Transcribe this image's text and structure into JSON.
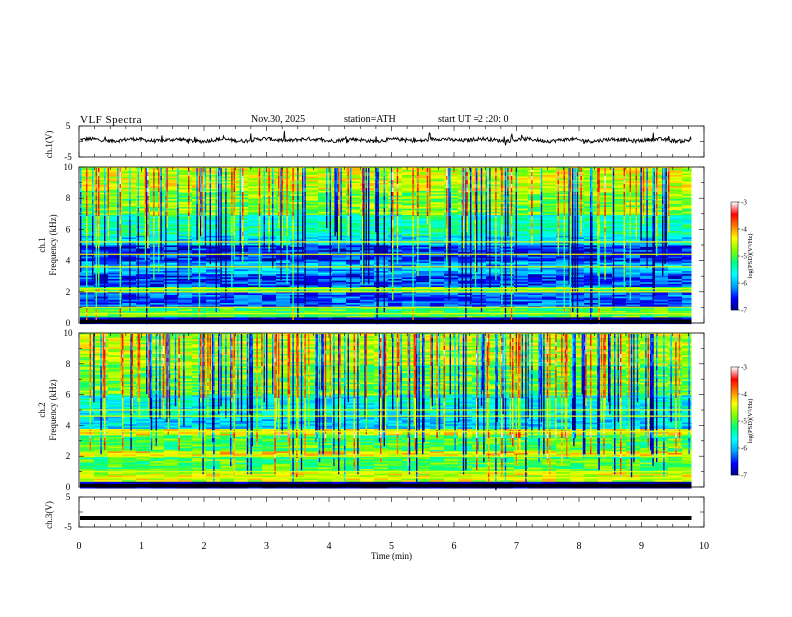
{
  "header": {
    "title": "VLF Spectra",
    "date": "Nov.30, 2025",
    "station": "station=ATH",
    "start_label": "start UT =",
    "start_time": "2 :20: 0"
  },
  "colors": {
    "waveform": "#000000",
    "colormap": [
      "#000080",
      "#0000ff",
      "#00a0ff",
      "#00ffff",
      "#00ff80",
      "#80ff00",
      "#ffff00",
      "#ff8000",
      "#ff0000",
      "#ffffff"
    ]
  },
  "chart_data": [
    {
      "type": "line",
      "panel": "ch1-waveform",
      "ylabel": "ch.1(V)",
      "ylim": [
        -5,
        5
      ],
      "yticks": [
        "5",
        "-5"
      ],
      "xlim": [
        0,
        10
      ],
      "baseline_v": 0.5,
      "noise_amplitude_v": 1.5,
      "x": [
        0,
        1,
        2,
        3,
        4,
        5,
        6,
        7,
        8,
        9,
        9.8
      ],
      "y": [
        0.5,
        0.5,
        0.3,
        0.6,
        0.5,
        0.4,
        0.6,
        0.5,
        0.4,
        0.5,
        0.4
      ]
    },
    {
      "type": "heatmap",
      "panel": "ch1-spectrogram",
      "ylabel": "ch.1\nFrequency (kHz)",
      "xlim": [
        0,
        10
      ],
      "ylim": [
        0,
        10
      ],
      "yticks": [
        "0",
        "2",
        "4",
        "6",
        "8",
        "10"
      ],
      "data_end_min": 9.8,
      "value_range": [
        -7,
        -3
      ],
      "band_levels": [
        {
          "from_khz": 0.0,
          "to_khz": 0.4,
          "level": -6.9
        },
        {
          "from_khz": 0.4,
          "to_khz": 1.0,
          "level": -5.0
        },
        {
          "from_khz": 1.0,
          "to_khz": 2.0,
          "level": -6.3
        },
        {
          "from_khz": 2.0,
          "to_khz": 2.4,
          "level": -5.0
        },
        {
          "from_khz": 2.4,
          "to_khz": 3.2,
          "level": -6.4
        },
        {
          "from_khz": 3.2,
          "to_khz": 4.0,
          "level": -6.0
        },
        {
          "from_khz": 4.0,
          "to_khz": 5.0,
          "level": -6.5
        },
        {
          "from_khz": 5.0,
          "to_khz": 5.6,
          "level": -5.8
        },
        {
          "from_khz": 5.6,
          "to_khz": 7.0,
          "level": -5.4
        },
        {
          "from_khz": 7.0,
          "to_khz": 8.5,
          "level": -4.8
        },
        {
          "from_khz": 8.5,
          "to_khz": 10.0,
          "level": -4.5
        }
      ],
      "lines_khz": [
        0.6,
        1.0,
        2.0,
        2.2,
        3.6,
        4.4,
        5.2
      ]
    },
    {
      "type": "heatmap",
      "panel": "ch2-spectrogram",
      "ylabel": "ch.2\nFrequency (kHz)",
      "xlim": [
        0,
        10
      ],
      "ylim": [
        0,
        10
      ],
      "yticks": [
        "0",
        "2",
        "4",
        "6",
        "8",
        "10"
      ],
      "data_end_min": 9.8,
      "value_range": [
        -7,
        -3
      ],
      "band_levels": [
        {
          "from_khz": 0.0,
          "to_khz": 0.4,
          "level": -6.9
        },
        {
          "from_khz": 0.4,
          "to_khz": 1.0,
          "level": -4.5
        },
        {
          "from_khz": 1.0,
          "to_khz": 2.0,
          "level": -5.0
        },
        {
          "from_khz": 2.0,
          "to_khz": 2.4,
          "level": -4.3
        },
        {
          "from_khz": 2.4,
          "to_khz": 3.4,
          "level": -5.0
        },
        {
          "from_khz": 3.4,
          "to_khz": 3.8,
          "level": -4.4
        },
        {
          "from_khz": 3.8,
          "to_khz": 4.6,
          "level": -5.8
        },
        {
          "from_khz": 4.6,
          "to_khz": 6.0,
          "level": -5.6
        },
        {
          "from_khz": 6.0,
          "to_khz": 8.0,
          "level": -4.9
        },
        {
          "from_khz": 8.0,
          "to_khz": 10.0,
          "level": -4.6
        }
      ],
      "lines_khz": [
        0.6,
        1.0,
        2.0,
        3.6,
        4.6,
        5.0
      ]
    },
    {
      "type": "line",
      "panel": "ch3-waveform",
      "ylabel": "ch.3(V)",
      "ylim": [
        -5,
        5
      ],
      "yticks": [
        "5",
        "-5"
      ],
      "xlim": [
        0,
        10
      ],
      "xlabel": "Time (min)",
      "xticks": [
        "0",
        "1",
        "2",
        "3",
        "4",
        "5",
        "6",
        "7",
        "8",
        "9",
        "10"
      ],
      "x": [
        0,
        9.8
      ],
      "y": [
        -2,
        -2
      ]
    }
  ],
  "colorbar": {
    "label": "log(PSD)(V²/Hz)",
    "ticks": [
      "-3",
      "-4",
      "-5",
      "-6",
      "-7"
    ],
    "range": [
      -7,
      -3
    ]
  }
}
